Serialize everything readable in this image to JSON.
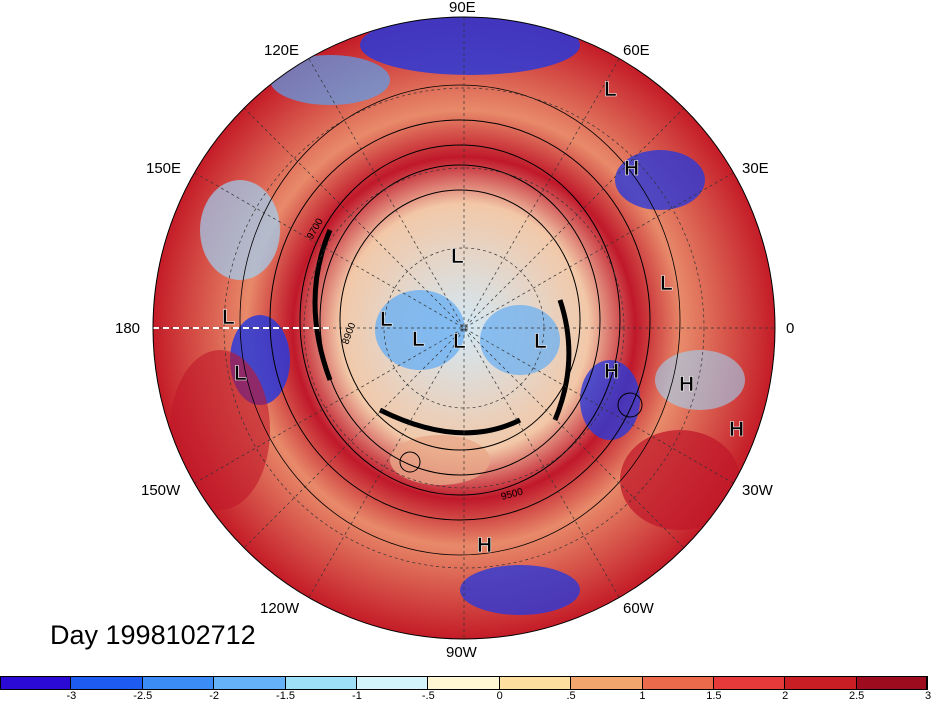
{
  "map": {
    "lon_labels": {
      "lon_90e": "90E",
      "lon_60e": "60E",
      "lon_120e": "120E",
      "lon_150e": "150E",
      "lon_30e": "30E",
      "lon_180": "180",
      "lon_0": "0",
      "lon_150w": "150W",
      "lon_30w": "30W",
      "lon_120w": "120W",
      "lon_60w": "60W",
      "lon_90w": "90W"
    },
    "contour_labels": [
      "9700",
      "8900",
      "9500"
    ],
    "pressure_centers": [
      "L",
      "L",
      "L",
      "L",
      "L",
      "L",
      "L",
      "L",
      "L",
      "H",
      "H",
      "H",
      "H",
      "H"
    ]
  },
  "day_label": "Day 1998102712",
  "colorbar": {
    "colors": [
      "#2a0ad4",
      "#1e5bf0",
      "#3b8cf5",
      "#66b2f8",
      "#9ee0f7",
      "#d2f4fa",
      "#fff6d4",
      "#fde0a0",
      "#f3a56e",
      "#ec6a4c",
      "#e63a3a",
      "#c81e24",
      "#9d0c1e"
    ],
    "ticks": [
      "-3",
      "-2.5",
      "-2",
      "-1.5",
      "-1",
      "-.5",
      "0",
      ".5",
      "1",
      "1.5",
      "2",
      "2.5",
      "3"
    ]
  }
}
